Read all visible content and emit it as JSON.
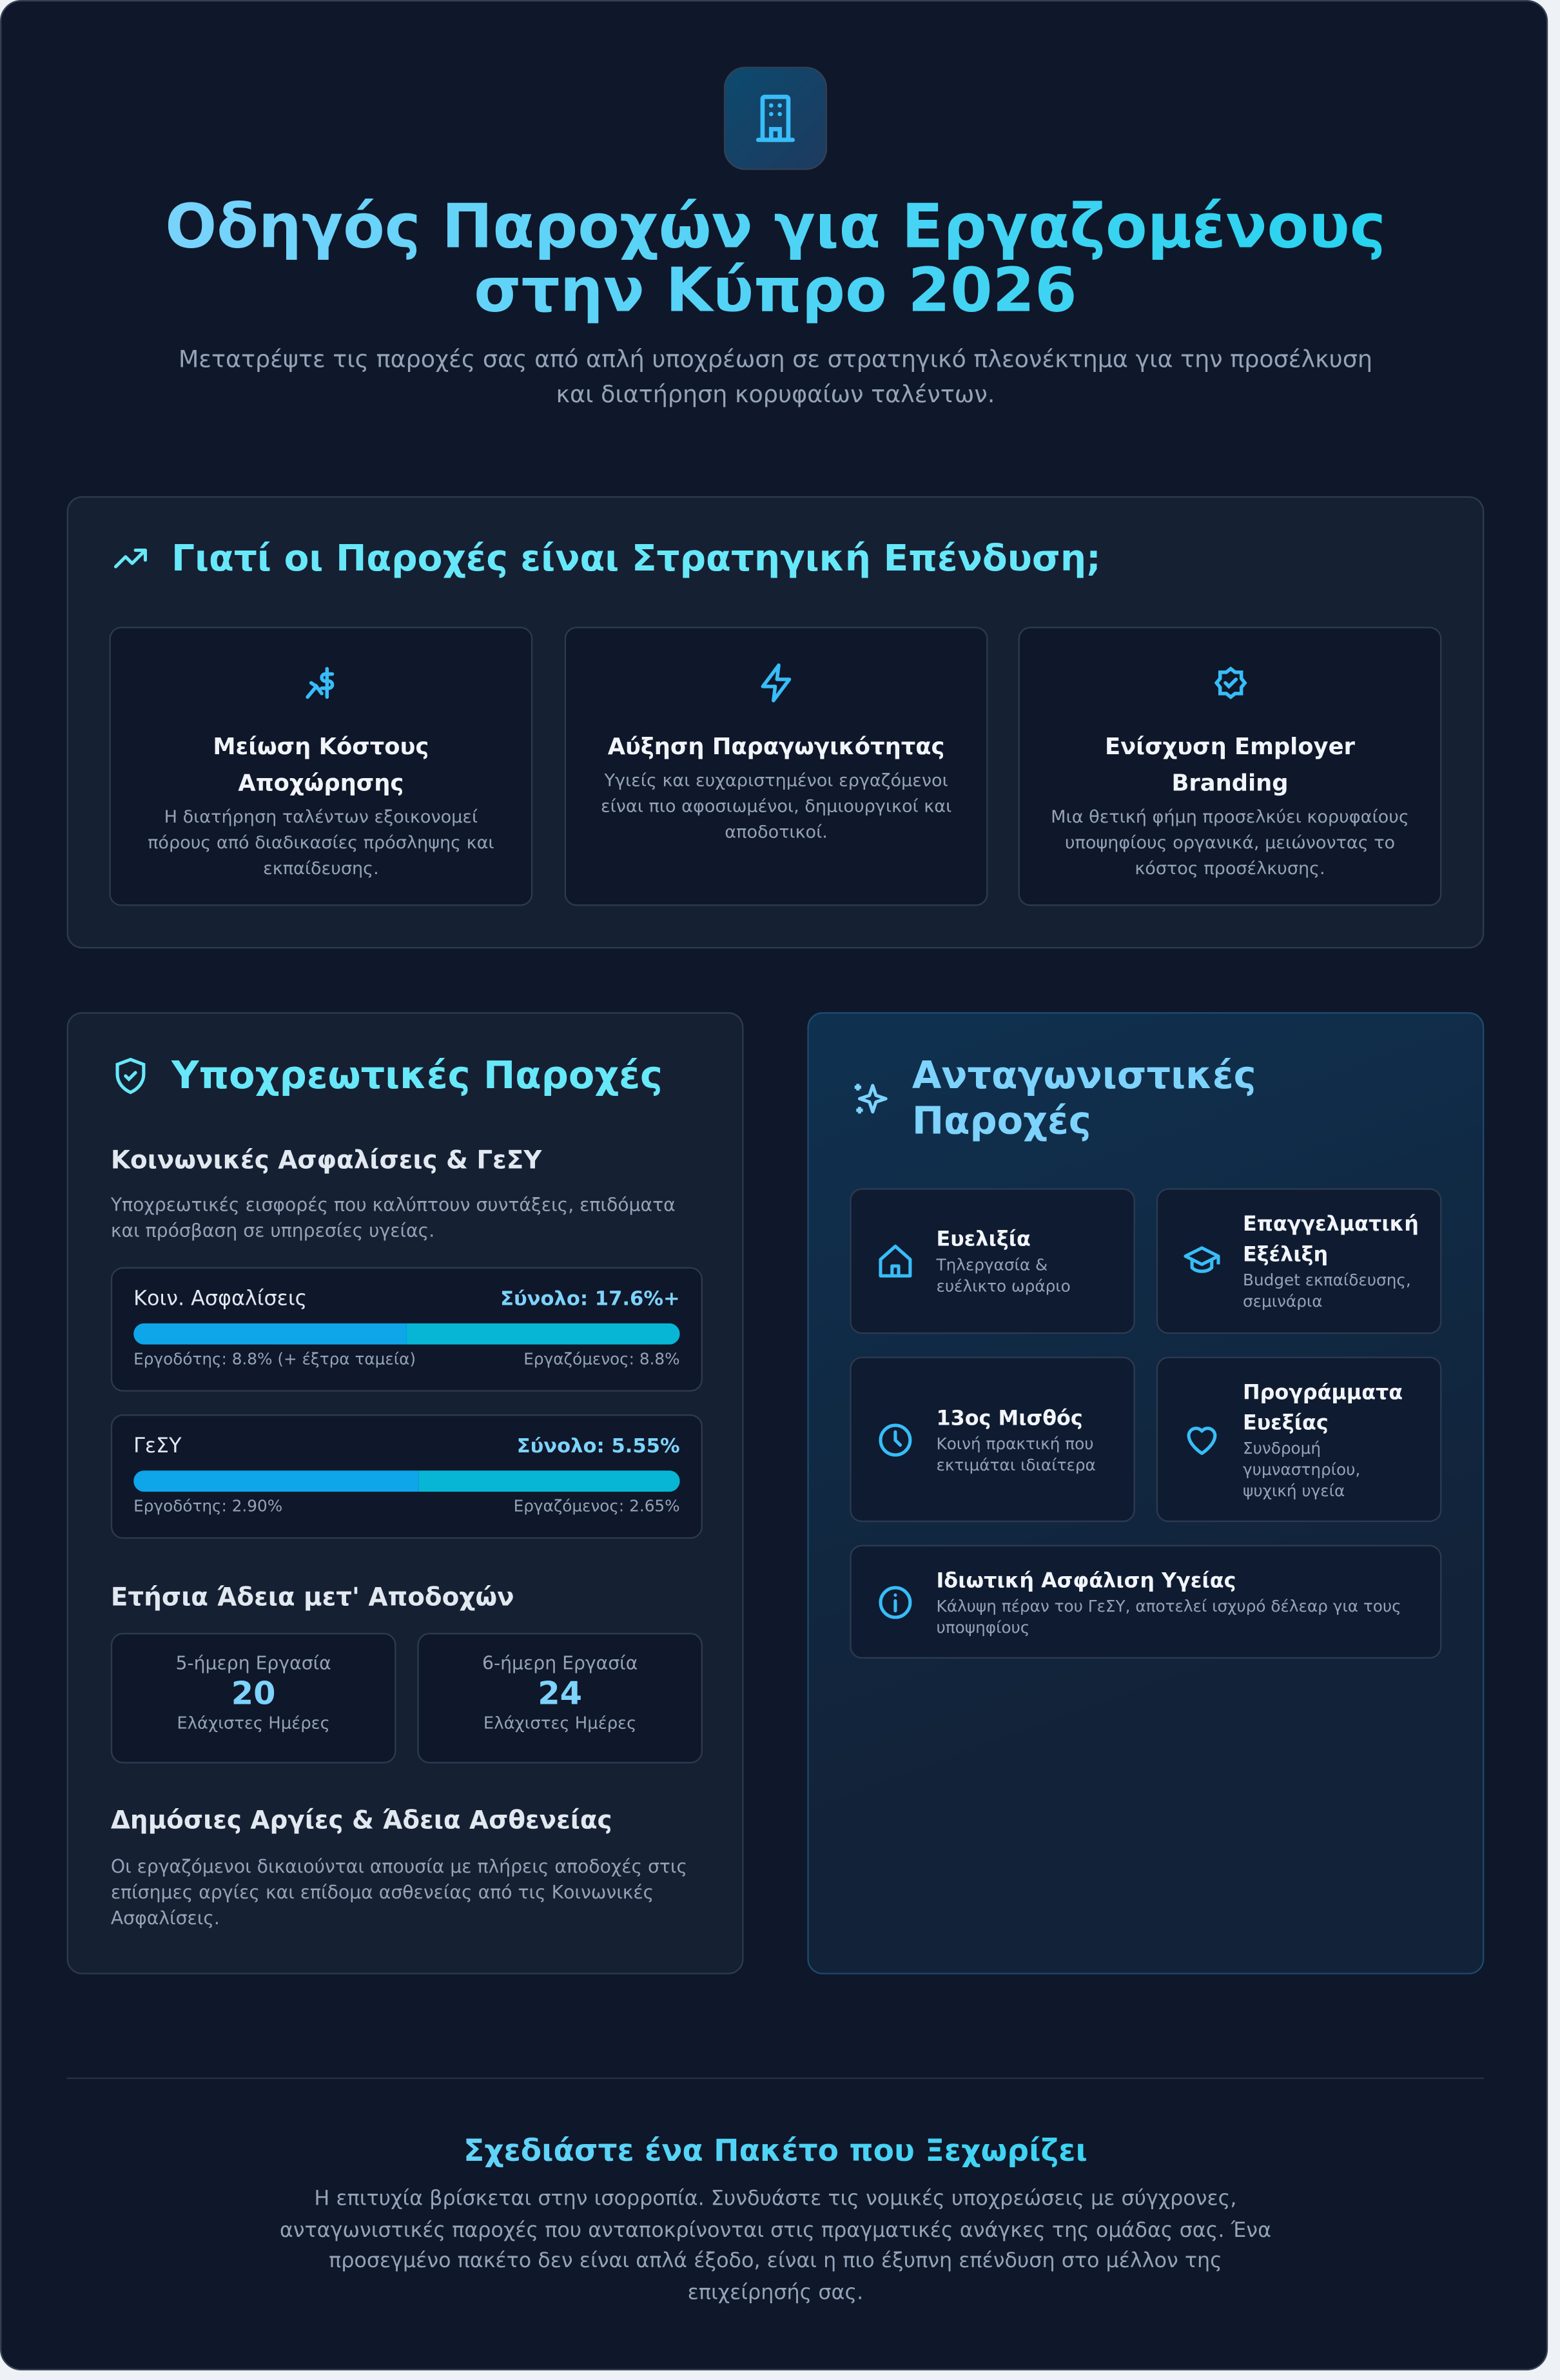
{
  "header": {
    "icon": "building-icon",
    "title": "Οδηγός Παροχών για Εργαζομένους στην Κύπρο 2026",
    "subtitle": "Μετατρέψτε τις παροχές σας από απλή υποχρέωση σε στρατηγικό πλεονέκτημα για την προσέλκυση και διατήρηση κορυφαίων ταλέντων."
  },
  "why": {
    "icon": "trending-up-icon",
    "title": "Γιατί οι Παροχές είναι Στρατηγική Επένδυση;",
    "cards": [
      {
        "icon": "hand-coins-icon",
        "title": "Μείωση Κόστους Αποχώρησης",
        "desc": "Η διατήρηση ταλέντων εξοικονομεί πόρους από διαδικασίες πρόσληψης και εκπαίδευσης."
      },
      {
        "icon": "lightning-icon",
        "title": "Αύξηση Παραγωγικότητας",
        "desc": "Υγιείς και ευχαριστημένοι εργαζόμενοι είναι πιο αφοσιωμένοι, δημιουργικοί και αποδοτικοί."
      },
      {
        "icon": "badge-check-icon",
        "title": "Ενίσχυση Employer Branding",
        "desc": "Μια θετική φήμη προσελκύει κορυφαίους υποψηφίους οργανικά, μειώνοντας το κόστος προσέλκυσης."
      }
    ]
  },
  "mandatory": {
    "icon": "shield-check-icon",
    "title": "Υποχρεωτικές Παροχές",
    "social": {
      "title": "Κοινωνικές Ασφαλίσεις & ΓεΣΥ",
      "desc": "Υποχρεωτικές εισφορές που καλύπτουν συντάξεις, επιδόματα και πρόσβαση σε υπηρεσίες υγείας.",
      "bars": [
        {
          "name": "Κοιν. Ασφαλίσεις",
          "total": "Σύνολο: 17.6%+",
          "employer": "Εργοδότης: 8.8% (+ έξτρα ταμεία)",
          "employee": "Εργαζόμενος: 8.8%",
          "employer_share_pct": 50
        },
        {
          "name": "ΓεΣΥ",
          "total": "Σύνολο: 5.55%",
          "employer": "Εργοδότης: 2.90%",
          "employee": "Εργαζόμενος: 2.65%",
          "employer_share_pct": 52.3
        }
      ]
    },
    "leave": {
      "title": "Ετήσια Άδεια μετ' Αποδοχών",
      "items": [
        {
          "label": "5-ήμερη Εργασία",
          "value": "20",
          "unit": "Ελάχιστες Ημέρες"
        },
        {
          "label": "6-ήμερη Εργασία",
          "value": "24",
          "unit": "Ελάχιστες Ημέρες"
        }
      ]
    },
    "holidays": {
      "title": "Δημόσιες Αργίες & Άδεια Ασθενείας",
      "desc": "Οι εργαζόμενοι δικαιούνται απουσία με πλήρεις αποδοχές στις επίσημες αργίες και επίδομα ασθενείας από τις Κοινωνικές Ασφαλίσεις."
    }
  },
  "competitive": {
    "icon": "sparkles-icon",
    "title": "Ανταγωνιστικές Παροχές",
    "items": [
      {
        "icon": "home-icon",
        "title": "Ευελιξία",
        "desc": "Τηλεργασία & ευέλικτο ωράριο"
      },
      {
        "icon": "graduation-cap-icon",
        "title": "Επαγγελματική Εξέλιξη",
        "desc": "Budget εκπαίδευσης, σεμινάρια"
      },
      {
        "icon": "clock-icon",
        "title": "13ος Μισθός",
        "desc": "Κοινή πρακτική που εκτιμάται ιδιαίτερα"
      },
      {
        "icon": "heart-icon",
        "title": "Προγράμματα Ευεξίας",
        "desc": "Συνδρομή γυμναστηρίου, ψυχική υγεία"
      },
      {
        "icon": "info-icon",
        "title": "Ιδιωτική Ασφάλιση Υγείας",
        "desc": "Κάλυψη πέραν του ΓεΣΥ, αποτελεί ισχυρό δέλεαρ για τους υποψηφίους"
      }
    ]
  },
  "footer": {
    "title": "Σχεδιάστε ένα Πακέτο που Ξεχωρίζει",
    "text": "Η επιτυχία βρίσκεται στην ισορροπία. Συνδυάστε τις νομικές υποχρεώσεις με σύγχρονες, ανταγωνιστικές παροχές που ανταποκρίνονται στις πραγματικές ανάγκες της ομάδας σας. Ένα προσεγμένο πακέτο δεν είναι απλά έξοδο, είναι η πιο έξυπνη επένδυση στο μέλλον της επιχείρησής σας."
  },
  "colors": {
    "background": "#0f172a",
    "accent": "#38bdf8",
    "heading": "#67e8f9",
    "employer_bar": "#0ea5e9",
    "employee_bar": "#06b6d4"
  }
}
